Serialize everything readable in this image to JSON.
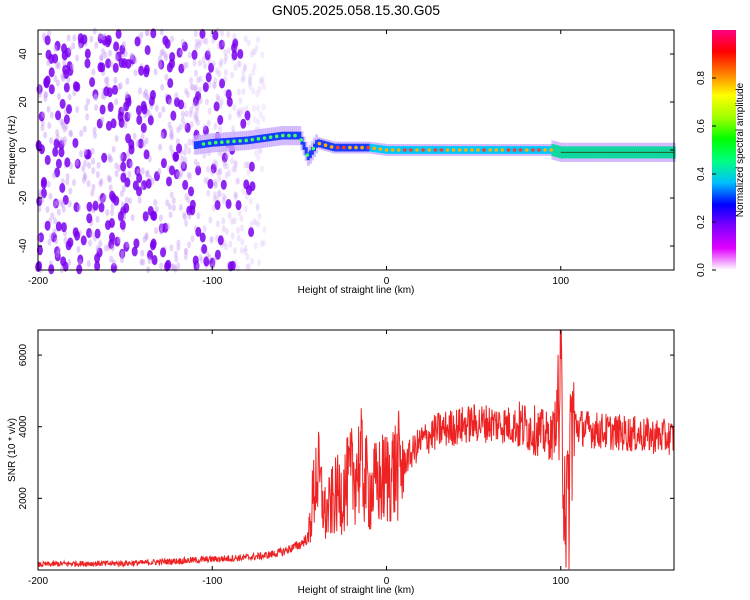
{
  "title": "GN05.2025.058.15.30.G05",
  "chart_data": [
    {
      "type": "heatmap",
      "xlabel": "Height of straight line (km)",
      "ylabel": "Frequency (Hz)",
      "xlim": [
        -200,
        165
      ],
      "ylim": [
        -50,
        50
      ],
      "x_ticks": [
        -200,
        -100,
        0,
        100
      ],
      "x_tick_labels": [
        "-200",
        "-100",
        "0",
        "100"
      ],
      "y_ticks": [
        -40,
        -20,
        0,
        20,
        40
      ],
      "y_tick_labels": [
        "-40",
        "-20",
        "0",
        "20",
        "40"
      ],
      "colorbar": {
        "label": "Normalized spectral amplitude",
        "range": [
          0,
          1
        ],
        "ticks": [
          0.0,
          0.2,
          0.4,
          0.6,
          0.8
        ],
        "tick_labels": [
          "0.0",
          "0.2",
          "0.4",
          "0.6",
          "0.8"
        ],
        "colors": [
          "#ffffff",
          "#e000ff",
          "#8000ff",
          "#0000ff",
          "#00c0ff",
          "#00ff80",
          "#00ff00",
          "#a0ff00",
          "#ffff00",
          "#ff8000",
          "#ff0000",
          "#ff0080"
        ]
      },
      "signal_trace": [
        {
          "x": -200,
          "y": null
        },
        {
          "x": -110,
          "y": 2
        },
        {
          "x": -100,
          "y": 3
        },
        {
          "x": -90,
          "y": 3.5
        },
        {
          "x": -80,
          "y": 4
        },
        {
          "x": -70,
          "y": 5
        },
        {
          "x": -60,
          "y": 6
        },
        {
          "x": -50,
          "y": 6
        },
        {
          "x": -45,
          "y": -3
        },
        {
          "x": -40,
          "y": 3
        },
        {
          "x": -30,
          "y": 1
        },
        {
          "x": -20,
          "y": 1
        },
        {
          "x": -10,
          "y": 1
        },
        {
          "x": 0,
          "y": 0
        },
        {
          "x": 20,
          "y": 0
        },
        {
          "x": 50,
          "y": 0
        },
        {
          "x": 80,
          "y": 0
        },
        {
          "x": 95,
          "y": 0
        },
        {
          "x": 100,
          "y": -1
        },
        {
          "x": 130,
          "y": -1
        },
        {
          "x": 165,
          "y": -1
        }
      ],
      "noise_region_x": [
        -200,
        -70
      ]
    },
    {
      "type": "line",
      "xlabel": "Height of straight line (km)",
      "ylabel": "SNR (10 * v/v)",
      "xlim": [
        -200,
        165
      ],
      "ylim": [
        0,
        6700
      ],
      "x_ticks": [
        -200,
        -100,
        0,
        100
      ],
      "x_tick_labels": [
        "-200",
        "-100",
        "0",
        "100"
      ],
      "y_ticks": [
        2000,
        4000,
        6000
      ],
      "y_tick_labels": [
        "2000",
        "4000",
        "6000"
      ],
      "line_color": "#ee2222",
      "series": [
        {
          "x": [
            -200,
            -180,
            -160,
            -140,
            -120,
            -100,
            -80,
            -70,
            -60,
            -50,
            -45,
            -40,
            -35,
            -30,
            -25,
            -20,
            -15,
            -10,
            -5,
            0,
            10,
            20,
            30,
            40,
            50,
            60,
            70,
            80,
            85,
            90,
            95,
            100,
            102,
            104,
            106,
            110,
            120,
            130,
            140,
            150,
            165
          ],
          "y": [
            150,
            180,
            180,
            200,
            250,
            300,
            350,
            400,
            500,
            700,
            900,
            2800,
            1500,
            2000,
            2200,
            2600,
            3000,
            2200,
            2400,
            2600,
            3000,
            3600,
            3900,
            4000,
            4100,
            4100,
            4050,
            4000,
            3900,
            3800,
            3700,
            4800,
            3000,
            1000,
            4200,
            4000,
            3900,
            3850,
            3800,
            3750,
            3700
          ]
        }
      ]
    }
  ]
}
